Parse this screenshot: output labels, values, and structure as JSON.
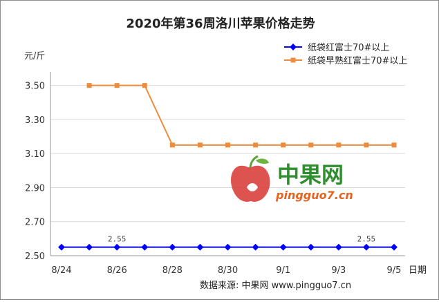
{
  "chart_data": {
    "type": "line",
    "title": "2020年第36周洛川苹果价格走势",
    "ylabel": "元/斤",
    "xlabel": "日期",
    "ylim": [
      2.5,
      3.6
    ],
    "yticks": [
      2.5,
      2.7,
      2.9,
      3.1,
      3.3,
      3.5
    ],
    "ytick_labels": [
      "2.50",
      "2.70",
      "2.90",
      "3.10",
      "3.30",
      "3.50"
    ],
    "categories": [
      "8/24",
      "8/25",
      "8/26",
      "8/27",
      "8/28",
      "8/29",
      "8/30",
      "8/31",
      "9/1",
      "9/2",
      "9/3",
      "9/4",
      "9/5"
    ],
    "xtick_labels": [
      "8/24",
      "",
      "8/26",
      "",
      "8/28",
      "",
      "8/30",
      "",
      "9/1",
      "",
      "9/3",
      "",
      "9/5"
    ],
    "series": [
      {
        "name": "纸袋红富士70#以上",
        "color": "#0000ff",
        "marker": "diamond",
        "values": [
          2.55,
          2.55,
          2.55,
          2.55,
          2.55,
          2.55,
          2.55,
          2.55,
          2.55,
          2.55,
          2.55,
          2.55,
          2.55
        ]
      },
      {
        "name": "纸袋早熟红富士70#以上",
        "color": "#ed8c3c",
        "marker": "square",
        "values": [
          null,
          3.5,
          3.5,
          3.5,
          3.15,
          3.15,
          3.15,
          3.15,
          3.15,
          3.15,
          3.15,
          3.15,
          3.15
        ]
      }
    ],
    "data_labels": [
      {
        "text": "2.55",
        "category": "8/26"
      },
      {
        "text": "2.55",
        "category": "9/4"
      }
    ],
    "grid": "horizontal",
    "legend": "top-right"
  },
  "watermark": {
    "text": "中果网",
    "url": "pingguo7.cn"
  },
  "source": "数据来源: 中果网 www.pingguo7.cn"
}
